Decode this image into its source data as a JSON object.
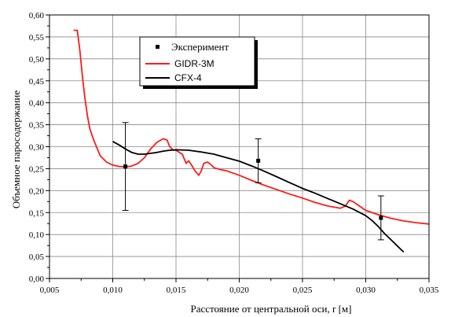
{
  "chart_data": {
    "type": "line",
    "xlabel": "Расстояние от центральной оси, r [м]",
    "ylabel": "Объемное паросодержание",
    "xlim": [
      0.005,
      0.035
    ],
    "ylim": [
      0.0,
      0.6
    ],
    "x_ticks": [
      "0,005",
      "0,010",
      "0,015",
      "0,020",
      "0,025",
      "0,030",
      "0,035"
    ],
    "y_ticks": [
      "0,00",
      "0,05",
      "0,10",
      "0,15",
      "0,20",
      "0,25",
      "0,30",
      "0,35",
      "0,40",
      "0,45",
      "0,50",
      "0,55",
      "0,60"
    ],
    "grid": true,
    "legend_position": "top-center",
    "legend": [
      {
        "name": "Эксперимент",
        "marker": "square",
        "color": "#000000"
      },
      {
        "name": "GIDR-3M",
        "marker": "line",
        "color": "#ff1a1a"
      },
      {
        "name": "CFX-4",
        "marker": "line",
        "color": "#000000"
      }
    ],
    "series": [
      {
        "name": "Эксперимент",
        "kind": "errorbar",
        "color": "#000000",
        "points": [
          {
            "x": 0.011,
            "y": 0.255,
            "low": 0.155,
            "high": 0.355
          },
          {
            "x": 0.0215,
            "y": 0.268,
            "low": 0.218,
            "high": 0.318
          },
          {
            "x": 0.0312,
            "y": 0.138,
            "low": 0.088,
            "high": 0.188
          }
        ]
      },
      {
        "name": "GIDR-3M",
        "kind": "line",
        "color": "#ff1a1a",
        "x": [
          0.0069,
          0.0072,
          0.0074,
          0.0076,
          0.0078,
          0.008,
          0.0082,
          0.0085,
          0.009,
          0.0095,
          0.01,
          0.0105,
          0.011,
          0.0115,
          0.012,
          0.0125,
          0.013,
          0.0135,
          0.014,
          0.0143,
          0.0145,
          0.0148,
          0.015,
          0.0155,
          0.0158,
          0.016,
          0.0163,
          0.0165,
          0.0168,
          0.017,
          0.0172,
          0.0175,
          0.0178,
          0.018,
          0.0185,
          0.019,
          0.02,
          0.021,
          0.022,
          0.023,
          0.024,
          0.025,
          0.026,
          0.027,
          0.028,
          0.0284,
          0.0287,
          0.029,
          0.0295,
          0.03,
          0.031,
          0.032,
          0.033,
          0.034,
          0.035
        ],
        "y": [
          0.565,
          0.565,
          0.52,
          0.46,
          0.41,
          0.37,
          0.34,
          0.315,
          0.28,
          0.265,
          0.258,
          0.255,
          0.254,
          0.256,
          0.262,
          0.275,
          0.295,
          0.31,
          0.318,
          0.315,
          0.3,
          0.292,
          0.292,
          0.283,
          0.262,
          0.268,
          0.255,
          0.245,
          0.235,
          0.245,
          0.262,
          0.265,
          0.258,
          0.252,
          0.248,
          0.245,
          0.235,
          0.223,
          0.212,
          0.202,
          0.192,
          0.183,
          0.173,
          0.165,
          0.16,
          0.165,
          0.178,
          0.175,
          0.165,
          0.155,
          0.145,
          0.137,
          0.131,
          0.127,
          0.124
        ]
      },
      {
        "name": "CFX-4",
        "kind": "line",
        "color": "#000000",
        "x": [
          0.01,
          0.0105,
          0.011,
          0.0115,
          0.012,
          0.0125,
          0.013,
          0.0135,
          0.014,
          0.0145,
          0.015,
          0.016,
          0.017,
          0.018,
          0.019,
          0.02,
          0.021,
          0.022,
          0.023,
          0.024,
          0.025,
          0.026,
          0.027,
          0.028,
          0.029,
          0.03,
          0.0305,
          0.031,
          0.0315,
          0.032,
          0.0325,
          0.033
        ],
        "y": [
          0.312,
          0.304,
          0.295,
          0.287,
          0.283,
          0.283,
          0.285,
          0.287,
          0.29,
          0.292,
          0.293,
          0.292,
          0.288,
          0.283,
          0.275,
          0.267,
          0.256,
          0.244,
          0.231,
          0.218,
          0.205,
          0.194,
          0.182,
          0.17,
          0.158,
          0.143,
          0.132,
          0.118,
          0.102,
          0.088,
          0.074,
          0.06
        ]
      }
    ]
  }
}
